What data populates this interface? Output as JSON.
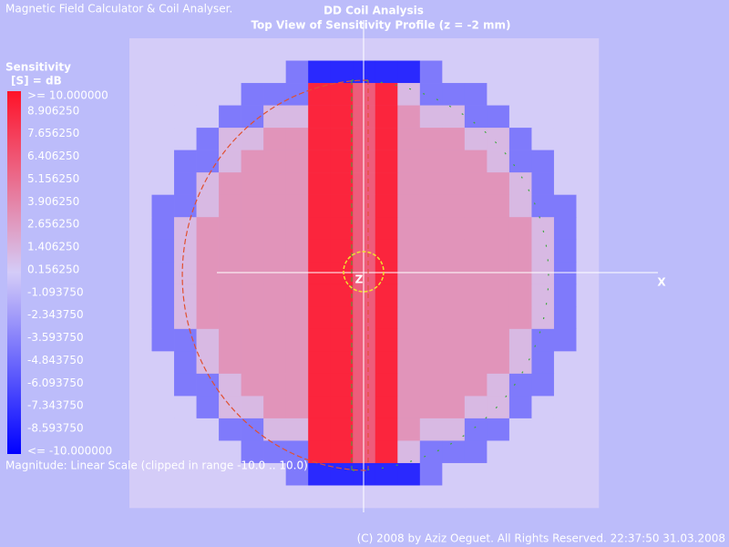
{
  "app_title": "Magnetic Field Calculator & Coil Analyser.",
  "copyright": "(C) 2008 by Aziz Oeguet. All Rights Reserved.  22:37:50  31.03.2008",
  "chart_data": {
    "type": "heatmap",
    "title": "DD Coil Analysis",
    "subtitle": "Top View of Sensitivity Profile (z = -2 mm)",
    "x_label": "X",
    "z_axis_label": "Z",
    "colorbar_title": "Sensitivity",
    "colorbar_unit": "[S] = dB",
    "scale_note": "Magnitude: Linear Scale (clipped in range -10.0 .. 10.0)",
    "zlim": [
      -10,
      10
    ],
    "zticks": [
      {
        "value": 10,
        "label": ">= 10.000000"
      },
      {
        "value": 8.90625,
        "label": "8.906250"
      },
      {
        "value": 7.65625,
        "label": "7.656250"
      },
      {
        "value": 6.40625,
        "label": "6.406250"
      },
      {
        "value": 5.15625,
        "label": "5.156250"
      },
      {
        "value": 3.90625,
        "label": "3.906250"
      },
      {
        "value": 2.65625,
        "label": "2.656250"
      },
      {
        "value": 1.40625,
        "label": "1.406250"
      },
      {
        "value": 0.15625,
        "label": "0.156250"
      },
      {
        "value": -1.09375,
        "label": "-1.093750"
      },
      {
        "value": -2.34375,
        "label": "-2.343750"
      },
      {
        "value": -3.59375,
        "label": "-3.593750"
      },
      {
        "value": -4.84375,
        "label": "-4.843750"
      },
      {
        "value": -6.09375,
        "label": "-6.093750"
      },
      {
        "value": -7.34375,
        "label": "-7.343750"
      },
      {
        "value": -8.59375,
        "label": "-8.593750"
      },
      {
        "value": -10,
        "label": "<= -10.000000"
      }
    ],
    "z": [
      [
        0,
        0,
        0,
        0,
        0,
        0,
        0,
        0,
        0,
        0,
        0,
        0,
        0,
        0,
        0,
        0,
        0,
        0,
        0,
        0,
        0
      ],
      [
        0,
        0,
        0,
        0,
        0,
        0,
        0,
        -4,
        -8,
        -8,
        -8,
        -8,
        -8,
        -4,
        0,
        0,
        0,
        0,
        0,
        0,
        0
      ],
      [
        0,
        0,
        0,
        0,
        0,
        -4,
        -4,
        -4,
        9,
        9,
        6,
        9,
        1,
        -4,
        -4,
        -4,
        0,
        0,
        0,
        0,
        0
      ],
      [
        0,
        0,
        0,
        0,
        -4,
        -4,
        1,
        1,
        9,
        9,
        6,
        9,
        3,
        1,
        1,
        -4,
        -4,
        0,
        0,
        0,
        0
      ],
      [
        0,
        0,
        0,
        -4,
        1,
        1,
        3,
        3,
        9,
        9,
        6,
        9,
        3,
        3,
        3,
        1,
        1,
        -4,
        0,
        0,
        0
      ],
      [
        0,
        0,
        -4,
        -4,
        1,
        3,
        3,
        3,
        9,
        9,
        6,
        9,
        3,
        3,
        3,
        3,
        1,
        -4,
        -4,
        0,
        0
      ],
      [
        0,
        0,
        -4,
        1,
        3,
        3,
        3,
        3,
        9,
        9,
        6,
        9,
        3,
        3,
        3,
        3,
        3,
        1,
        -4,
        0,
        0
      ],
      [
        0,
        -4,
        -4,
        1,
        3,
        3,
        3,
        3,
        9,
        9,
        6,
        9,
        3,
        3,
        3,
        3,
        3,
        1,
        -4,
        -4,
        0
      ],
      [
        0,
        -4,
        1,
        3,
        3,
        3,
        3,
        3,
        9,
        9,
        6,
        9,
        3,
        3,
        3,
        3,
        3,
        3,
        1,
        -4,
        0
      ],
      [
        0,
        -4,
        1,
        3,
        3,
        3,
        3,
        3,
        9,
        9,
        6,
        9,
        3,
        3,
        3,
        3,
        3,
        3,
        1,
        -4,
        0
      ],
      [
        0,
        -4,
        1,
        3,
        3,
        3,
        3,
        3,
        9,
        9,
        6,
        9,
        3,
        3,
        3,
        3,
        3,
        3,
        1,
        -4,
        0
      ],
      [
        0,
        -4,
        1,
        3,
        3,
        3,
        3,
        3,
        9,
        9,
        6,
        9,
        3,
        3,
        3,
        3,
        3,
        3,
        1,
        -4,
        0
      ],
      [
        0,
        -4,
        1,
        3,
        3,
        3,
        3,
        3,
        9,
        9,
        6,
        9,
        3,
        3,
        3,
        3,
        3,
        3,
        1,
        -4,
        0
      ],
      [
        0,
        -4,
        -4,
        1,
        3,
        3,
        3,
        3,
        9,
        9,
        6,
        9,
        3,
        3,
        3,
        3,
        3,
        1,
        -4,
        -4,
        0
      ],
      [
        0,
        0,
        -4,
        1,
        3,
        3,
        3,
        3,
        9,
        9,
        6,
        9,
        3,
        3,
        3,
        3,
        3,
        1,
        -4,
        0,
        0
      ],
      [
        0,
        0,
        -4,
        -4,
        1,
        3,
        3,
        3,
        9,
        9,
        6,
        9,
        3,
        3,
        3,
        3,
        1,
        -4,
        -4,
        0,
        0
      ],
      [
        0,
        0,
        0,
        -4,
        1,
        1,
        3,
        3,
        9,
        9,
        6,
        9,
        3,
        3,
        3,
        1,
        1,
        -4,
        0,
        0,
        0
      ],
      [
        0,
        0,
        0,
        0,
        -4,
        -4,
        1,
        1,
        9,
        9,
        6,
        9,
        3,
        1,
        1,
        -4,
        -4,
        0,
        0,
        0,
        0
      ],
      [
        0,
        0,
        0,
        0,
        0,
        -4,
        -4,
        -4,
        9,
        9,
        6,
        9,
        1,
        -4,
        -4,
        -4,
        0,
        0,
        0,
        0,
        0
      ],
      [
        0,
        0,
        0,
        0,
        0,
        0,
        0,
        -4,
        -8,
        -8,
        -8,
        -8,
        -8,
        -4,
        0,
        0,
        0,
        0,
        0,
        0,
        0
      ],
      [
        0,
        0,
        0,
        0,
        0,
        0,
        0,
        0,
        0,
        0,
        0,
        0,
        0,
        0,
        0,
        0,
        0,
        0,
        0,
        0,
        0
      ]
    ]
  }
}
